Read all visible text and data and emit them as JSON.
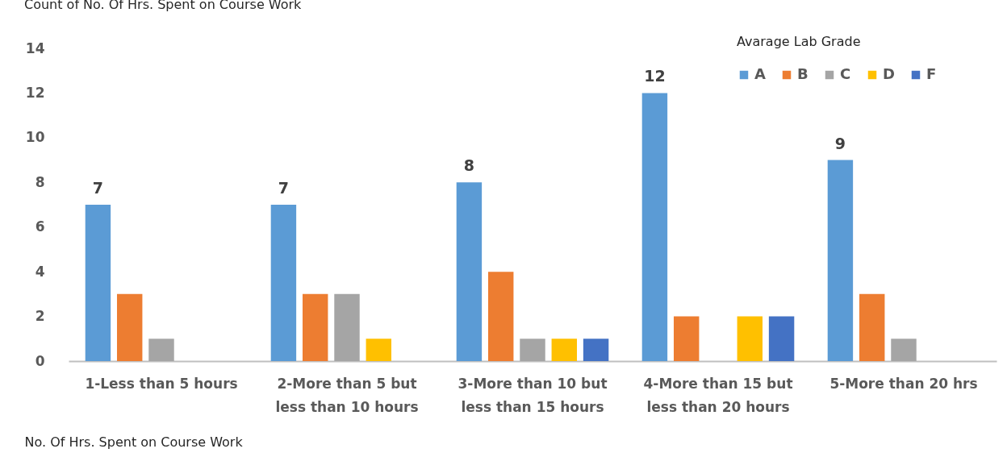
{
  "chart_data": {
    "type": "bar",
    "title": "Count of No. Of Hrs. Spent on Course Work",
    "xlabel": "No. Of Hrs. Spent on Course Work",
    "legend_title": "Avarage Lab Grade",
    "categories": [
      "1-Less than 5 hours",
      "2-More than 5 but less than 10 hours",
      "3-More than 10 but less than 15 hours",
      "4-More than 15 but less than 20 hours",
      "5-More than 20 hrs"
    ],
    "series": [
      {
        "name": "A",
        "color": "#5b9bd5",
        "values": [
          7,
          7,
          8,
          12,
          9
        ],
        "value_labels": [
          "7",
          "7",
          "8",
          "12",
          "9"
        ]
      },
      {
        "name": "B",
        "color": "#ed7d31",
        "values": [
          3,
          3,
          4,
          2,
          3
        ]
      },
      {
        "name": "C",
        "color": "#a5a5a5",
        "values": [
          1,
          3,
          1,
          null,
          1
        ]
      },
      {
        "name": "D",
        "color": "#ffc000",
        "values": [
          null,
          1,
          1,
          2,
          null
        ]
      },
      {
        "name": "F",
        "color": "#4472c4",
        "values": [
          null,
          null,
          1,
          2,
          null
        ]
      }
    ],
    "ylim": [
      0,
      14
    ],
    "yticks": [
      0,
      2,
      4,
      6,
      8,
      10,
      12,
      14
    ],
    "grid": false,
    "legend": "top right"
  }
}
